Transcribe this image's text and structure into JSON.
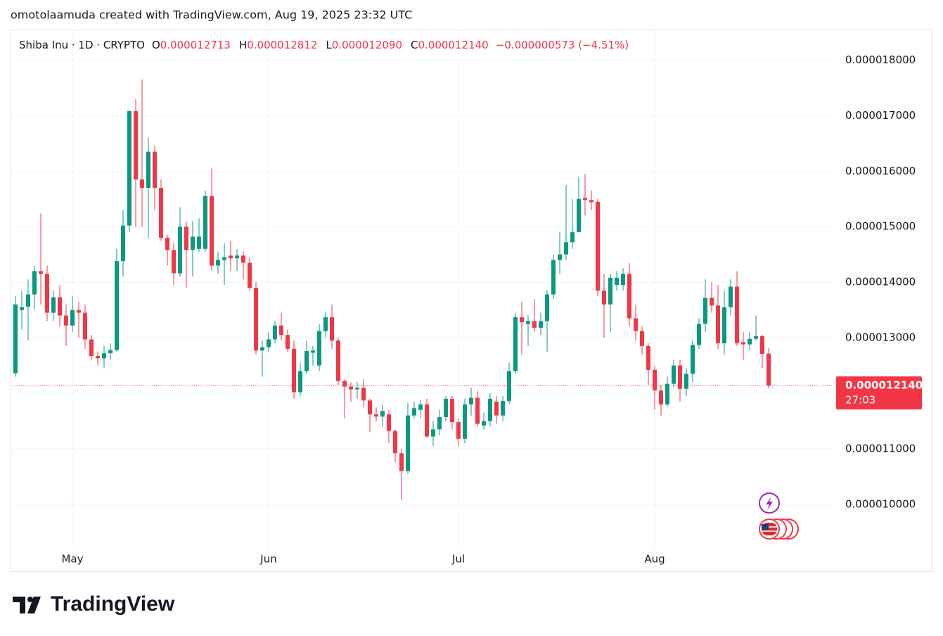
{
  "watermark": "omotolaamuda created with TradingView.com, Aug 19, 2025 23:32 UTC",
  "legend": {
    "symbol": "Shiba Inu · 1D · CRYPTO",
    "items": [
      {
        "key": "O",
        "value": "0.000012713"
      },
      {
        "key": "H",
        "value": "0.000012812"
      },
      {
        "key": "L",
        "value": "0.000012090"
      },
      {
        "key": "C",
        "value": "0.000012140"
      }
    ],
    "change": "−0.000000573 (−4.51%)"
  },
  "logo": "TradingView",
  "chart_data": {
    "type": "candlestick",
    "up_color": "#089981",
    "down_color": "#f23645",
    "grid": true,
    "ylim": [
      9.2e-06,
      1.855e-05
    ],
    "yticks": [
      {
        "value": 1e-05,
        "label": "0.000010000"
      },
      {
        "value": 1.1e-05,
        "label": "0.000011000"
      },
      {
        "value": 1.2e-05,
        "label": "0.000012000"
      },
      {
        "value": 1.3e-05,
        "label": "0.000013000"
      },
      {
        "value": 1.4e-05,
        "label": "0.000014000"
      },
      {
        "value": 1.5e-05,
        "label": "0.000015000"
      },
      {
        "value": 1.6e-05,
        "label": "0.000016000"
      },
      {
        "value": 1.7e-05,
        "label": "0.000017000"
      },
      {
        "value": 1.8e-05,
        "label": "0.000018000"
      }
    ],
    "categories": [
      null,
      null,
      null,
      null,
      null,
      null,
      null,
      null,
      null,
      "May",
      null,
      null,
      null,
      null,
      null,
      null,
      null,
      null,
      null,
      null,
      null,
      null,
      null,
      null,
      null,
      null,
      null,
      null,
      null,
      null,
      null,
      null,
      null,
      null,
      null,
      null,
      null,
      null,
      null,
      null,
      "Jun",
      null,
      null,
      null,
      null,
      null,
      null,
      null,
      null,
      null,
      null,
      null,
      null,
      null,
      null,
      null,
      null,
      null,
      null,
      null,
      null,
      null,
      null,
      null,
      null,
      null,
      null,
      null,
      null,
      null,
      "Jul",
      null,
      null,
      null,
      null,
      null,
      null,
      null,
      null,
      null,
      null,
      null,
      null,
      null,
      null,
      null,
      null,
      null,
      null,
      null,
      null,
      null,
      null,
      null,
      null,
      null,
      null,
      null,
      null,
      null,
      null,
      "Aug",
      null,
      null,
      null,
      null,
      null,
      null,
      null,
      null,
      null,
      null,
      null,
      null,
      null,
      null,
      null,
      null,
      null,
      null
    ],
    "open": [
      1.236e-05,
      1.35e-05,
      1.356e-05,
      1.378e-05,
      1.42e-05,
      1.415e-05,
      1.345e-05,
      1.373e-05,
      1.34e-05,
      1.322e-05,
      1.35e-05,
      1.345e-05,
      1.297e-05,
      1.267e-05,
      1.263e-05,
      1.272e-05,
      1.278e-05,
      1.438e-05,
      1.502e-05,
      1.708e-05,
      1.585e-05,
      1.57e-05,
      1.635e-05,
      1.57e-05,
      1.48e-05,
      1.458e-05,
      1.416e-05,
      1.5e-05,
      1.458e-05,
      1.46e-05,
      1.46e-05,
      1.555e-05,
      1.43e-05,
      1.44e-05,
      1.448e-05,
      1.443e-05,
      1.448e-05,
      1.435e-05,
      1.39e-05,
      1.277e-05,
      1.283e-05,
      1.297e-05,
      1.322e-05,
      1.305e-05,
      1.28e-05,
      1.202e-05,
      1.24e-05,
      1.273e-05,
      1.25e-05,
      1.312e-05,
      1.337e-05,
      1.295e-05,
      1.222e-05,
      1.212e-05,
      1.207e-05,
      1.21e-05,
      1.187e-05,
      1.162e-05,
      1.158e-05,
      1.162e-05,
      1.132e-05,
      1.092e-05,
      1.06e-05,
      1.16e-05,
      1.17e-05,
      1.18e-05,
      1.122e-05,
      1.135e-05,
      1.157e-05,
      1.19e-05,
      1.148e-05,
      1.118e-05,
      1.18e-05,
      1.192e-05,
      1.142e-05,
      1.15e-05,
      1.185e-05,
      1.16e-05,
      1.186e-05,
      1.24e-05,
      1.337e-05,
      1.325e-05,
      1.33e-05,
      1.318e-05,
      1.33e-05,
      1.378e-05,
      1.44e-05,
      1.45e-05,
      1.472e-05,
      1.49e-05,
      1.552e-05,
      1.548e-05,
      1.545e-05,
      1.385e-05,
      1.36e-05,
      1.395e-05,
      1.395e-05,
      1.415e-05,
      1.335e-05,
      1.312e-05,
      1.285e-05,
      1.242e-05,
      1.205e-05,
      1.18e-05,
      1.217e-05,
      1.25e-05,
      1.208e-05,
      1.235e-05,
      1.287e-05,
      1.325e-05,
      1.372e-05,
      1.358e-05,
      1.29e-05,
      1.355e-05,
      1.392e-05,
      1.292e-05,
      1.288e-05,
      1.298e-05,
      1.303e-05,
      1.2713e-05
    ],
    "high": [
      1.375e-05,
      1.385e-05,
      1.405e-05,
      1.43e-05,
      1.524e-05,
      1.43e-05,
      1.385e-05,
      1.395e-05,
      1.36e-05,
      1.375e-05,
      1.365e-05,
      1.36e-05,
      1.305e-05,
      1.275e-05,
      1.285e-05,
      1.29e-05,
      1.46e-05,
      1.53e-05,
      1.71e-05,
      1.73e-05,
      1.765e-05,
      1.66e-05,
      1.645e-05,
      1.585e-05,
      1.485e-05,
      1.47e-05,
      1.535e-05,
      1.51e-05,
      1.51e-05,
      1.515e-05,
      1.565e-05,
      1.605e-05,
      1.455e-05,
      1.47e-05,
      1.475e-05,
      1.46e-05,
      1.455e-05,
      1.445e-05,
      1.4e-05,
      1.295e-05,
      1.31e-05,
      1.33e-05,
      1.345e-05,
      1.315e-05,
      1.295e-05,
      1.255e-05,
      1.295e-05,
      1.285e-05,
      1.325e-05,
      1.345e-05,
      1.36e-05,
      1.3e-05,
      1.225e-05,
      1.22e-05,
      1.22e-05,
      1.225e-05,
      1.19e-05,
      1.175e-05,
      1.18e-05,
      1.17e-05,
      1.135e-05,
      1.1e-05,
      1.182e-05,
      1.185e-05,
      1.188e-05,
      1.19e-05,
      1.15e-05,
      1.17e-05,
      1.195e-05,
      1.195e-05,
      1.155e-05,
      1.19e-05,
      1.21e-05,
      1.205e-05,
      1.165e-05,
      1.2e-05,
      1.195e-05,
      1.195e-05,
      1.255e-05,
      1.345e-05,
      1.365e-05,
      1.34e-05,
      1.37e-05,
      1.345e-05,
      1.385e-05,
      1.45e-05,
      1.49e-05,
      1.575e-05,
      1.55e-05,
      1.59e-05,
      1.595e-05,
      1.565e-05,
      1.55e-05,
      1.415e-05,
      1.415e-05,
      1.42e-05,
      1.425e-05,
      1.435e-05,
      1.36e-05,
      1.32e-05,
      1.29e-05,
      1.25e-05,
      1.215e-05,
      1.23e-05,
      1.26e-05,
      1.26e-05,
      1.245e-05,
      1.295e-05,
      1.335e-05,
      1.405e-05,
      1.4e-05,
      1.395e-05,
      1.385e-05,
      1.405e-05,
      1.42e-05,
      1.31e-05,
      1.31e-05,
      1.34e-05,
      1.305e-05,
      1.2812e-05
    ],
    "low": [
      1.23e-05,
      1.315e-05,
      1.295e-05,
      1.35e-05,
      1.36e-05,
      1.33e-05,
      1.33e-05,
      1.32e-05,
      1.285e-05,
      1.31e-05,
      1.3e-05,
      1.28e-05,
      1.26e-05,
      1.25e-05,
      1.245e-05,
      1.26e-05,
      1.275e-05,
      1.41e-05,
      1.49e-05,
      1.5e-05,
      1.5e-05,
      1.48e-05,
      1.53e-05,
      1.475e-05,
      1.43e-05,
      1.395e-05,
      1.41e-05,
      1.39e-05,
      1.41e-05,
      1.455e-05,
      1.455e-05,
      1.42e-05,
      1.415e-05,
      1.395e-05,
      1.42e-05,
      1.42e-05,
      1.405e-05,
      1.385e-05,
      1.27e-05,
      1.23e-05,
      1.275e-05,
      1.29e-05,
      1.295e-05,
      1.275e-05,
      1.19e-05,
      1.195e-05,
      1.235e-05,
      1.25e-05,
      1.24e-05,
      1.3e-05,
      1.28e-05,
      1.215e-05,
      1.155e-05,
      1.185e-05,
      1.19e-05,
      1.175e-05,
      1.13e-05,
      1.15e-05,
      1.14e-05,
      1.11e-05,
      1.075e-05,
      1.007e-05,
      1.055e-05,
      1.155e-05,
      1.155e-05,
      1.12e-05,
      1.105e-05,
      1.125e-05,
      1.15e-05,
      1.135e-05,
      1.105e-05,
      1.11e-05,
      1.16e-05,
      1.14e-05,
      1.135e-05,
      1.14e-05,
      1.145e-05,
      1.15e-05,
      1.18e-05,
      1.235e-05,
      1.27e-05,
      1.285e-05,
      1.31e-05,
      1.305e-05,
      1.275e-05,
      1.37e-05,
      1.415e-05,
      1.44e-05,
      1.46e-05,
      1.49e-05,
      1.52e-05,
      1.53e-05,
      1.375e-05,
      1.3e-05,
      1.31e-05,
      1.385e-05,
      1.385e-05,
      1.32e-05,
      1.295e-05,
      1.27e-05,
      1.215e-05,
      1.17e-05,
      1.16e-05,
      1.175e-05,
      1.21e-05,
      1.185e-05,
      1.195e-05,
      1.22e-05,
      1.28e-05,
      1.31e-05,
      1.345e-05,
      1.28e-05,
      1.27e-05,
      1.34e-05,
      1.285e-05,
      1.26e-05,
      1.278e-05,
      1.295e-05,
      1.245e-05,
      1.209e-05
    ],
    "close": [
      1.36e-05,
      1.355e-05,
      1.378e-05,
      1.42e-05,
      1.415e-05,
      1.345e-05,
      1.373e-05,
      1.34e-05,
      1.322e-05,
      1.35e-05,
      1.345e-05,
      1.297e-05,
      1.267e-05,
      1.263e-05,
      1.272e-05,
      1.278e-05,
      1.438e-05,
      1.502e-05,
      1.708e-05,
      1.585e-05,
      1.57e-05,
      1.635e-05,
      1.57e-05,
      1.48e-05,
      1.458e-05,
      1.416e-05,
      1.5e-05,
      1.458e-05,
      1.482e-05,
      1.482e-05,
      1.555e-05,
      1.43e-05,
      1.44e-05,
      1.445e-05,
      1.443e-05,
      1.448e-05,
      1.435e-05,
      1.39e-05,
      1.277e-05,
      1.283e-05,
      1.297e-05,
      1.322e-05,
      1.305e-05,
      1.28e-05,
      1.202e-05,
      1.24e-05,
      1.276e-05,
      1.277e-05,
      1.312e-05,
      1.337e-05,
      1.295e-05,
      1.222e-05,
      1.212e-05,
      1.207e-05,
      1.21e-05,
      1.187e-05,
      1.162e-05,
      1.158e-05,
      1.168e-05,
      1.132e-05,
      1.092e-05,
      1.06e-05,
      1.16e-05,
      1.173e-05,
      1.18e-05,
      1.122e-05,
      1.135e-05,
      1.157e-05,
      1.19e-05,
      1.148e-05,
      1.118e-05,
      1.18e-05,
      1.192e-05,
      1.145e-05,
      1.15e-05,
      1.19e-05,
      1.16e-05,
      1.186e-05,
      1.24e-05,
      1.337e-05,
      1.328e-05,
      1.33e-05,
      1.318e-05,
      1.33e-05,
      1.378e-05,
      1.44e-05,
      1.45e-05,
      1.472e-05,
      1.49e-05,
      1.55e-05,
      1.548e-05,
      1.544e-05,
      1.385e-05,
      1.36e-05,
      1.408e-05,
      1.408e-05,
      1.415e-05,
      1.335e-05,
      1.312e-05,
      1.285e-05,
      1.242e-05,
      1.205e-05,
      1.18e-05,
      1.217e-05,
      1.25e-05,
      1.208e-05,
      1.235e-05,
      1.287e-05,
      1.325e-05,
      1.372e-05,
      1.358e-05,
      1.29e-05,
      1.355e-05,
      1.392e-05,
      1.29e-05,
      1.288e-05,
      1.298e-05,
      1.303e-05,
      1.271e-05,
      1.214e-05
    ],
    "last_price": {
      "value": 1.214e-05,
      "label": "0.000012140"
    },
    "countdown": "27:03"
  }
}
